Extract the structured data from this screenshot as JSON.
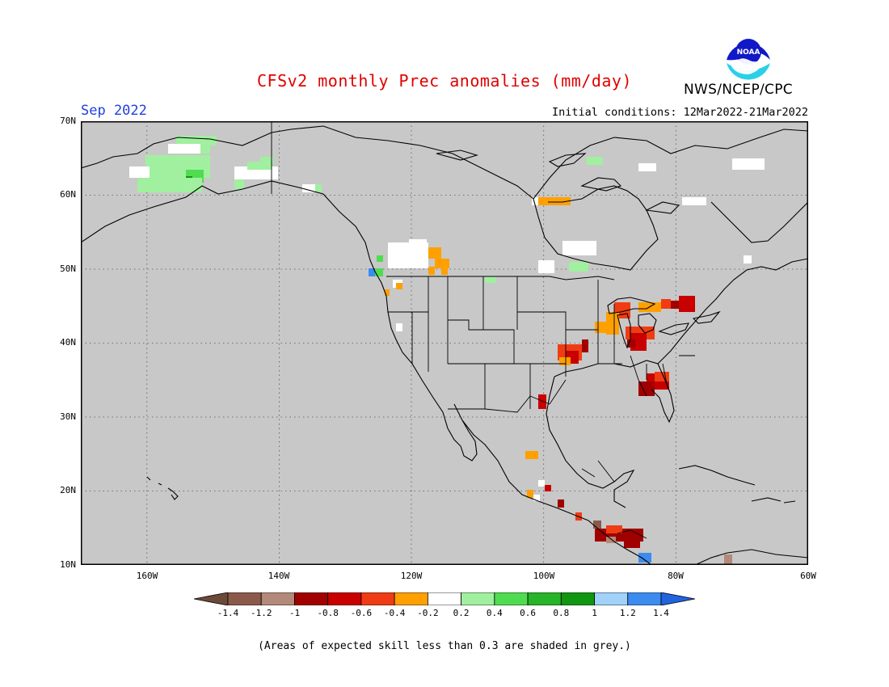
{
  "title": "CFSv2 monthly Prec anomalies (mm/day)",
  "month": "Sep 2022",
  "initial_conditions": "Initial conditions: 12Mar2022-21Mar2022",
  "agency": "NWS/NCEP/CPC",
  "logo_text": "NOAA",
  "footnote": "(Areas of expected skill less than 0.3 are shaded in grey.)",
  "map": {
    "background_color": "#c8c8c8",
    "lat_labels": [
      "70N",
      "60N",
      "50N",
      "40N",
      "30N",
      "20N",
      "10N"
    ],
    "lon_labels": [
      "160W",
      "140W",
      "120W",
      "100W",
      "80W",
      "60W"
    ]
  },
  "colorbar": {
    "labels": [
      "-1.4",
      "-1.2",
      "-1",
      "-0.8",
      "-0.6",
      "-0.4",
      "-0.2",
      "0.2",
      "0.4",
      "0.6",
      "0.8",
      "1",
      "1.2",
      "1.4"
    ],
    "colors": [
      "#6b4a3a",
      "#8b5a4a",
      "#b38a7a",
      "#a00000",
      "#c80000",
      "#f03c14",
      "#ffa000",
      "#ffffff",
      "#a0f0a0",
      "#50dc50",
      "#28b428",
      "#109610",
      "#a0d2fa",
      "#3c8cf0",
      "#2064e0"
    ]
  },
  "colors": {
    "title": "#e00000",
    "month": "#2040e0"
  }
}
